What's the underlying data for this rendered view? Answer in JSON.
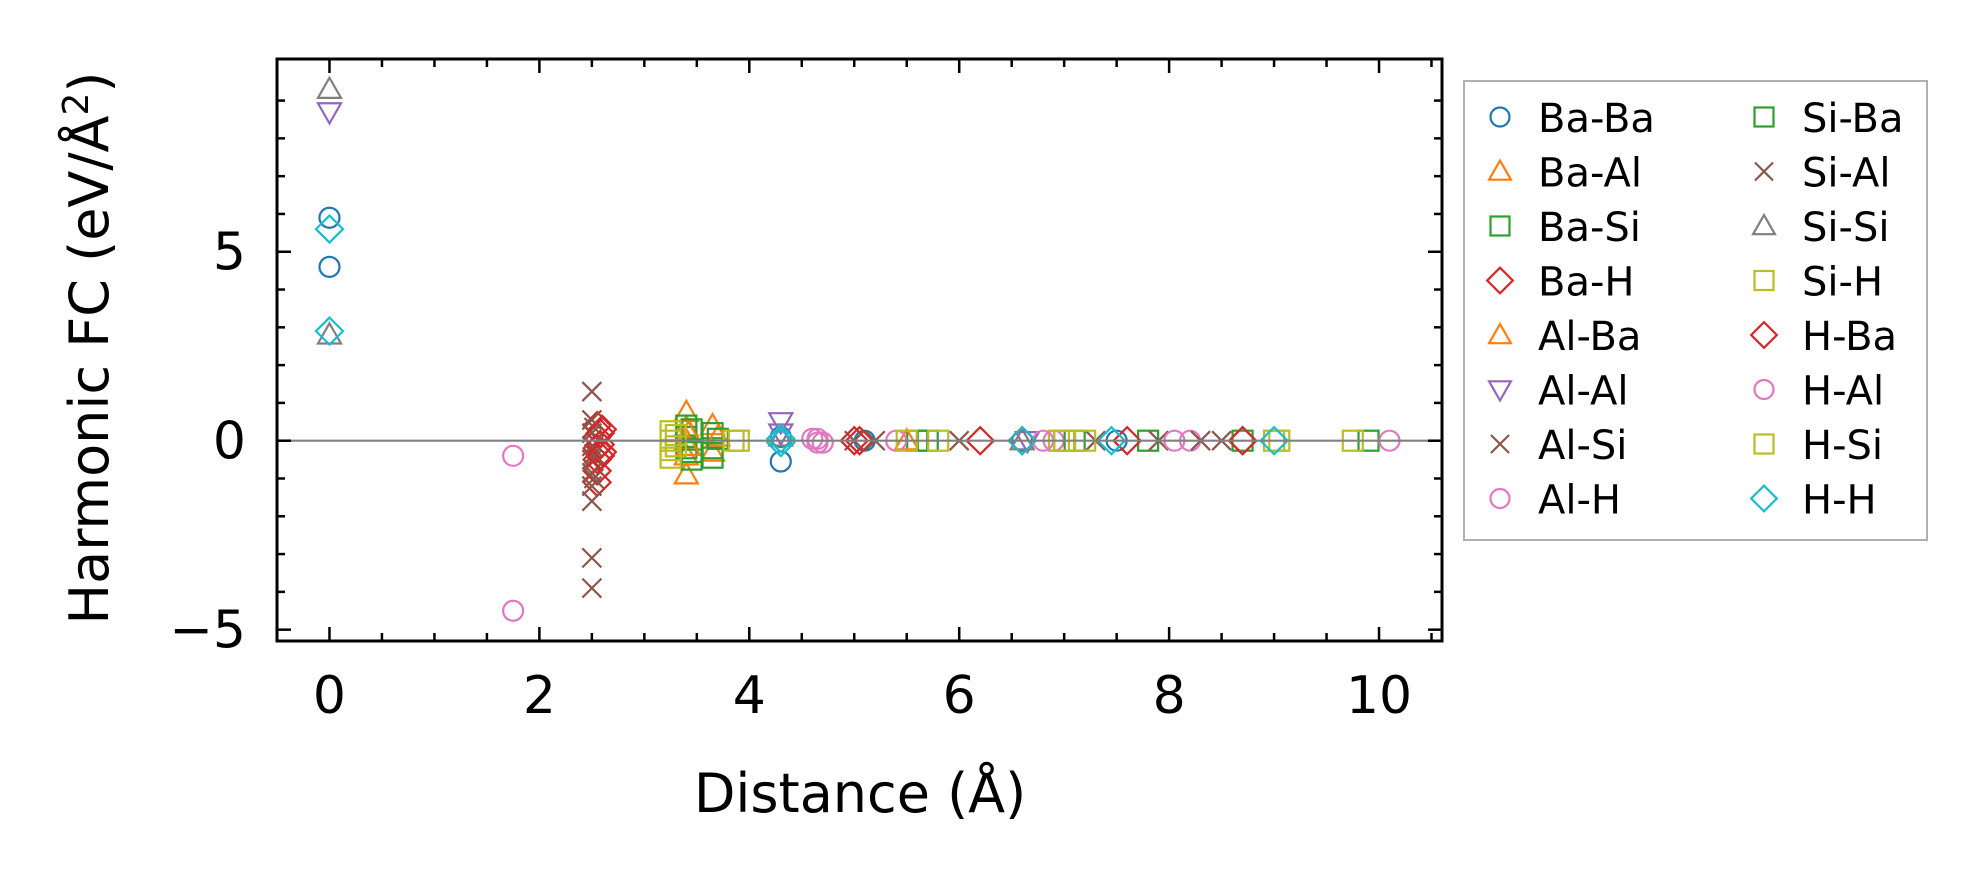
{
  "chart_data": {
    "type": "scatter",
    "xlabel": "Distance (Å)",
    "ylabel_main": "Harmonic FC (eV/Å",
    "ylabel_sup": "2",
    "ylabel_close": ")",
    "xlim": [
      -0.5,
      10.6
    ],
    "ylim": [
      -5.3,
      10.1
    ],
    "xticks": [
      0,
      2,
      4,
      6,
      8,
      10
    ],
    "xtick_labels": [
      "0",
      "2",
      "4",
      "6",
      "8",
      "10"
    ],
    "yticks": [
      -5,
      0,
      5
    ],
    "ytick_labels": [
      "−5",
      "0",
      "5"
    ],
    "reference_line_y": 0,
    "legend_position": "right, outside plot",
    "series": [
      {
        "name": "Ba-Ba",
        "color": "#1f77b4",
        "marker": "circle",
        "points": [
          [
            0,
            5.9
          ],
          [
            0,
            4.6
          ],
          [
            4.3,
            -0.55
          ],
          [
            4.3,
            0.1
          ],
          [
            5.1,
            0
          ],
          [
            6.6,
            0
          ],
          [
            7.5,
            0
          ]
        ]
      },
      {
        "name": "Ba-Al",
        "color": "#ff7f0e",
        "marker": "triangle-up",
        "points": [
          [
            3.4,
            0.75
          ],
          [
            3.4,
            0.35
          ],
          [
            3.4,
            0.0
          ],
          [
            3.4,
            -0.4
          ],
          [
            3.4,
            -0.9
          ],
          [
            3.65,
            0.4
          ],
          [
            3.65,
            -0.3
          ]
        ]
      },
      {
        "name": "Ba-Si",
        "color": "#2ca02c",
        "marker": "square",
        "points": [
          [
            3.4,
            0.4
          ],
          [
            3.4,
            0.1
          ],
          [
            3.4,
            -0.2
          ],
          [
            3.45,
            -0.5
          ],
          [
            3.65,
            0.2
          ],
          [
            3.65,
            -0.2
          ],
          [
            3.65,
            -0.45
          ],
          [
            5.6,
            0
          ],
          [
            7.0,
            0
          ],
          [
            7.8,
            0
          ],
          [
            9.9,
            0
          ]
        ]
      },
      {
        "name": "Ba-H",
        "color": "#d62728",
        "marker": "diamond",
        "points": [
          [
            2.55,
            0.4
          ],
          [
            2.55,
            0.1
          ],
          [
            2.55,
            -0.2
          ],
          [
            2.55,
            -0.5
          ],
          [
            2.55,
            -0.8
          ],
          [
            2.55,
            -1.1
          ],
          [
            2.6,
            0.3
          ],
          [
            2.6,
            -0.3
          ],
          [
            5.05,
            0
          ],
          [
            6.2,
            0
          ],
          [
            8.7,
            0
          ]
        ]
      },
      {
        "name": "Al-Ba",
        "color": "#ff7f0e",
        "marker": "triangle-up",
        "points": [
          [
            3.42,
            0.2
          ],
          [
            3.42,
            -0.15
          ],
          [
            3.7,
            0.1
          ],
          [
            5.5,
            0
          ]
        ]
      },
      {
        "name": "Al-Al",
        "color": "#9467bd",
        "marker": "triangle-down",
        "points": [
          [
            0,
            8.7
          ],
          [
            4.3,
            0.5
          ],
          [
            4.3,
            0.2
          ],
          [
            6.65,
            0
          ]
        ]
      },
      {
        "name": "Al-Si",
        "color": "#8c564b",
        "marker": "x",
        "points": [
          [
            2.5,
            1.3
          ],
          [
            2.5,
            0.55
          ],
          [
            2.5,
            0.2
          ],
          [
            2.5,
            -0.15
          ],
          [
            2.5,
            -0.5
          ],
          [
            2.5,
            -0.85
          ],
          [
            2.5,
            -1.2
          ],
          [
            2.5,
            -1.6
          ],
          [
            2.5,
            -3.1
          ],
          [
            2.5,
            -3.9
          ],
          [
            5.2,
            0
          ],
          [
            6.0,
            0
          ],
          [
            7.9,
            0
          ],
          [
            8.5,
            0
          ]
        ]
      },
      {
        "name": "Al-H",
        "color": "#e377c2",
        "marker": "circle",
        "points": [
          [
            1.75,
            -0.4
          ],
          [
            1.75,
            -4.5
          ],
          [
            4.65,
            0.05
          ],
          [
            4.65,
            -0.05
          ],
          [
            5.4,
            0
          ],
          [
            6.9,
            0
          ],
          [
            8.2,
            0
          ],
          [
            10.1,
            0
          ]
        ]
      },
      {
        "name": "Si-Ba",
        "color": "#2ca02c",
        "marker": "square",
        "points": [
          [
            3.45,
            0.3
          ],
          [
            3.45,
            -0.3
          ],
          [
            3.7,
            0.05
          ],
          [
            5.7,
            0
          ],
          [
            7.1,
            0
          ],
          [
            8.7,
            0
          ]
        ]
      },
      {
        "name": "Si-Al",
        "color": "#8c564b",
        "marker": "x",
        "points": [
          [
            2.52,
            0.35
          ],
          [
            2.52,
            -0.35
          ],
          [
            2.52,
            -1.0
          ],
          [
            5.0,
            0
          ],
          [
            7.3,
            0
          ],
          [
            8.3,
            0
          ]
        ]
      },
      {
        "name": "Si-Si",
        "color": "#7f7f7f",
        "marker": "triangle-up",
        "points": [
          [
            0,
            9.3
          ],
          [
            0,
            2.8
          ],
          [
            4.3,
            0.1
          ],
          [
            6.6,
            0
          ]
        ]
      },
      {
        "name": "Si-H",
        "color": "#bcbd22",
        "marker": "square",
        "points": [
          [
            3.25,
            0.25
          ],
          [
            3.25,
            0.0
          ],
          [
            3.25,
            -0.25
          ],
          [
            3.25,
            -0.45
          ],
          [
            3.9,
            0.0
          ],
          [
            5.8,
            0
          ],
          [
            6.95,
            0
          ],
          [
            7.2,
            0
          ],
          [
            9.0,
            0
          ],
          [
            9.75,
            0
          ]
        ]
      },
      {
        "name": "H-Ba",
        "color": "#d62728",
        "marker": "diamond",
        "points": [
          [
            2.58,
            0.2
          ],
          [
            2.58,
            -0.1
          ],
          [
            2.58,
            -0.4
          ],
          [
            5.0,
            0
          ],
          [
            6.6,
            0
          ],
          [
            7.6,
            0
          ],
          [
            8.7,
            0
          ]
        ]
      },
      {
        "name": "H-Al",
        "color": "#e377c2",
        "marker": "circle",
        "points": [
          [
            4.6,
            0.05
          ],
          [
            4.7,
            -0.05
          ],
          [
            6.8,
            0
          ],
          [
            8.05,
            0
          ]
        ]
      },
      {
        "name": "H-Si",
        "color": "#bcbd22",
        "marker": "square",
        "points": [
          [
            3.3,
            0.15
          ],
          [
            3.3,
            -0.15
          ],
          [
            3.85,
            0.0
          ],
          [
            5.5,
            0
          ],
          [
            7.0,
            0
          ],
          [
            9.05,
            0
          ]
        ]
      },
      {
        "name": "H-H",
        "color": "#17becf",
        "marker": "diamond",
        "points": [
          [
            0,
            5.6
          ],
          [
            0,
            2.9
          ],
          [
            4.3,
            0.05
          ],
          [
            4.3,
            -0.05
          ],
          [
            6.6,
            0
          ],
          [
            7.45,
            0
          ],
          [
            9.0,
            0
          ]
        ]
      }
    ]
  }
}
